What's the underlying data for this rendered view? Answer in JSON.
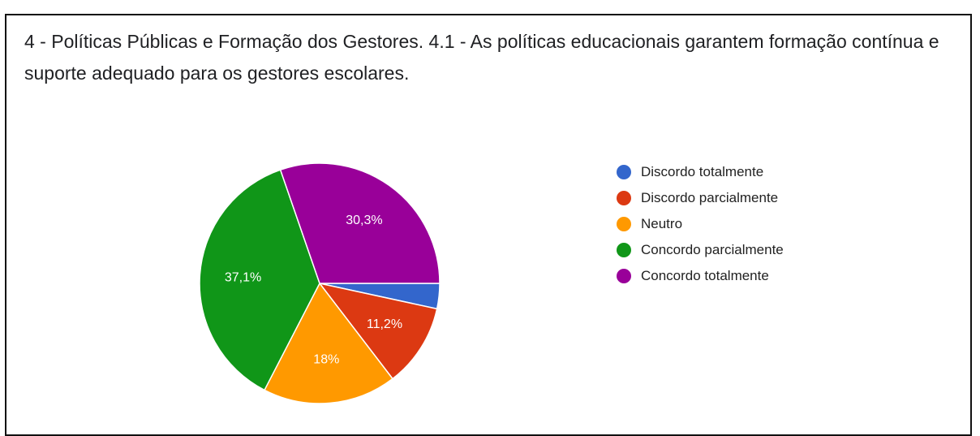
{
  "chart_data": {
    "type": "pie",
    "title": "4 - Políticas Públicas e Formação dos Gestores.  4.1 - As políticas educacionais garantem formação contínua e suporte adequado para os gestores escolares.",
    "slices": [
      {
        "label": "Discordo totalmente",
        "value": 3.4,
        "color": "#3366cc",
        "display": ""
      },
      {
        "label": "Discordo parcialmente",
        "value": 11.2,
        "color": "#dc3912",
        "display": "11,2%"
      },
      {
        "label": "Neutro",
        "value": 18.0,
        "color": "#ff9900",
        "display": "18%"
      },
      {
        "label": "Concordo parcialmente",
        "value": 37.1,
        "color": "#109618",
        "display": "37,1%"
      },
      {
        "label": "Concordo totalmente",
        "value": 30.3,
        "color": "#990099",
        "display": "30,3%"
      }
    ],
    "start_angle_deg": 90,
    "direction": "clockwise",
    "legend_position": "right"
  }
}
